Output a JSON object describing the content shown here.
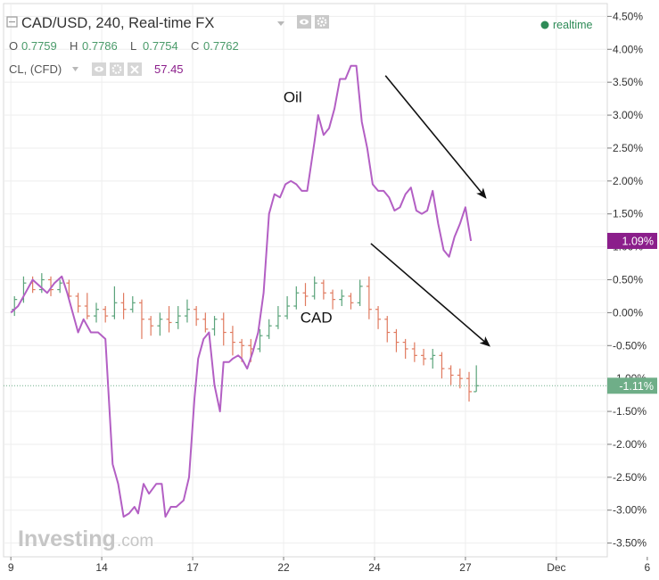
{
  "header": {
    "collapse_icon": "square-minus-icon",
    "symbol_title": "CAD/USD, 240, Real-time FX",
    "dropdown_icon": "triangle-down-icon",
    "eye_icon": "eye-icon",
    "settings_icon": "gear-icon",
    "ohlc": [
      {
        "label": "O",
        "value": "0.7759"
      },
      {
        "label": "H",
        "value": "0.7786"
      },
      {
        "label": "L",
        "value": "0.7754"
      },
      {
        "label": "C",
        "value": "0.7762"
      }
    ],
    "compare_title": "CL, (CFD)",
    "compare_value": "57.45",
    "close_icon": "close-icon",
    "realtime_label": "realtime",
    "realtime_dot_color": "#2e8b57"
  },
  "watermark": {
    "brand": "Investing",
    "suffix": ".com"
  },
  "colors": {
    "oil_line": "#b35fc4",
    "candle_up": "#5aa37a",
    "candle_down": "#e07a5f",
    "oil_badge": "#8b1e8b",
    "cad_badge": "#6fae88",
    "grid": "#eeeeee",
    "dotted_line": "#6fae88"
  },
  "chart_data": {
    "type": "line",
    "title": "CAD/USD, 240, Real-time FX",
    "y_axis": {
      "unit": "%",
      "ylim": [
        -3.6,
        4.6
      ],
      "tick_labels": [
        "4.50%",
        "4.00%",
        "3.50%",
        "3.00%",
        "2.50%",
        "2.00%",
        "1.50%",
        "1.00%",
        "0.50%",
        "0.00%",
        "-0.50%",
        "-1.00%",
        "-1.50%",
        "-2.00%",
        "-2.50%",
        "-3.00%",
        "-3.50%"
      ],
      "tick_values": [
        4.5,
        4.0,
        3.5,
        3.0,
        2.5,
        2.0,
        1.5,
        1.0,
        0.5,
        0.0,
        -0.5,
        -1.0,
        -1.5,
        -2.0,
        -2.5,
        -3.0,
        -3.5
      ]
    },
    "x_axis": {
      "xlim": [
        8.6,
        41.8
      ],
      "tick_labels": [
        "9",
        "14",
        "17",
        "22",
        "24",
        "27",
        "Dec",
        "6"
      ],
      "tick_values": [
        9,
        14,
        19,
        24,
        29,
        34,
        39,
        44
      ]
    },
    "grid": true,
    "last_value_badges": [
      {
        "series": "Oil",
        "label": "1.09%",
        "value": 1.09
      },
      {
        "series": "CAD",
        "label": "-1.11%",
        "value": -1.11
      }
    ],
    "annotations": [
      {
        "text": "Oil",
        "x": 24.5,
        "y": 3.2
      },
      {
        "text": "CAD",
        "x": 25.8,
        "y": -0.15
      }
    ],
    "arrows": [
      {
        "from": [
          29.6,
          3.6
        ],
        "to": [
          35.1,
          1.75
        ]
      },
      {
        "from": [
          28.8,
          1.05
        ],
        "to": [
          35.3,
          -0.5
        ]
      }
    ],
    "series": [
      {
        "name": "Oil",
        "kind": "line",
        "points": [
          [
            9.0,
            0.0
          ],
          [
            9.4,
            0.1
          ],
          [
            9.8,
            0.3
          ],
          [
            10.2,
            0.5
          ],
          [
            10.6,
            0.4
          ],
          [
            11.0,
            0.3
          ],
          [
            11.4,
            0.45
          ],
          [
            11.8,
            0.55
          ],
          [
            12.1,
            0.3
          ],
          [
            12.4,
            0.0
          ],
          [
            12.7,
            -0.3
          ],
          [
            13.0,
            -0.1
          ],
          [
            13.4,
            -0.3
          ],
          [
            13.8,
            -0.3
          ],
          [
            14.2,
            -0.4
          ],
          [
            14.6,
            -2.3
          ],
          [
            14.9,
            -2.6
          ],
          [
            15.2,
            -3.1
          ],
          [
            15.5,
            -3.05
          ],
          [
            15.8,
            -2.95
          ],
          [
            16.0,
            -3.05
          ],
          [
            16.3,
            -2.6
          ],
          [
            16.6,
            -2.75
          ],
          [
            17.0,
            -2.6
          ],
          [
            17.3,
            -2.6
          ],
          [
            17.5,
            -3.1
          ],
          [
            17.8,
            -2.95
          ],
          [
            18.1,
            -2.95
          ],
          [
            18.5,
            -2.85
          ],
          [
            18.8,
            -2.5
          ],
          [
            19.1,
            -1.3
          ],
          [
            19.3,
            -0.7
          ],
          [
            19.6,
            -0.4
          ],
          [
            19.9,
            -0.3
          ],
          [
            20.2,
            -1.1
          ],
          [
            20.5,
            -1.5
          ],
          [
            20.7,
            -0.75
          ],
          [
            21.0,
            -0.75
          ],
          [
            21.2,
            -0.7
          ],
          [
            21.5,
            -0.65
          ],
          [
            21.7,
            -0.7
          ],
          [
            22.0,
            -0.85
          ],
          [
            22.3,
            -0.6
          ],
          [
            22.6,
            -0.3
          ],
          [
            22.9,
            0.3
          ],
          [
            23.2,
            1.5
          ],
          [
            23.5,
            1.8
          ],
          [
            23.8,
            1.75
          ],
          [
            24.1,
            1.95
          ],
          [
            24.4,
            2.0
          ],
          [
            24.7,
            1.95
          ],
          [
            25.0,
            1.85
          ],
          [
            25.3,
            1.85
          ],
          [
            25.7,
            2.6
          ],
          [
            25.9,
            3.0
          ],
          [
            26.2,
            2.7
          ],
          [
            26.5,
            2.8
          ],
          [
            26.8,
            3.1
          ],
          [
            27.1,
            3.55
          ],
          [
            27.4,
            3.55
          ],
          [
            27.7,
            3.75
          ],
          [
            28.0,
            3.75
          ],
          [
            28.3,
            2.9
          ],
          [
            28.6,
            2.5
          ],
          [
            28.9,
            1.95
          ],
          [
            29.2,
            1.85
          ],
          [
            29.5,
            1.85
          ],
          [
            29.8,
            1.75
          ],
          [
            30.1,
            1.55
          ],
          [
            30.4,
            1.6
          ],
          [
            30.7,
            1.8
          ],
          [
            31.0,
            1.9
          ],
          [
            31.3,
            1.55
          ],
          [
            31.6,
            1.5
          ],
          [
            31.9,
            1.55
          ],
          [
            32.2,
            1.85
          ],
          [
            32.5,
            1.35
          ],
          [
            32.8,
            0.95
          ],
          [
            33.1,
            0.85
          ],
          [
            33.4,
            1.15
          ],
          [
            33.7,
            1.35
          ],
          [
            34.0,
            1.6
          ],
          [
            34.3,
            1.09
          ]
        ]
      },
      {
        "name": "CAD",
        "kind": "candlestick",
        "candles": [
          [
            9.2,
            0.05,
            0.2,
            0.25,
            -0.05
          ],
          [
            9.7,
            0.2,
            0.45,
            0.55,
            0.15
          ],
          [
            10.2,
            0.45,
            0.35,
            0.55,
            0.3
          ],
          [
            10.7,
            0.35,
            0.5,
            0.6,
            0.3
          ],
          [
            11.2,
            0.5,
            0.35,
            0.55,
            0.25
          ],
          [
            11.7,
            0.35,
            0.45,
            0.5,
            0.3
          ],
          [
            12.2,
            0.45,
            0.25,
            0.5,
            0.2
          ],
          [
            12.7,
            0.25,
            0.1,
            0.3,
            0.0
          ],
          [
            13.2,
            0.1,
            -0.05,
            0.3,
            -0.1
          ],
          [
            13.7,
            -0.05,
            0.05,
            0.15,
            -0.15
          ],
          [
            14.2,
            0.05,
            -0.05,
            0.1,
            -0.15
          ],
          [
            14.7,
            -0.05,
            0.15,
            0.4,
            -0.1
          ],
          [
            15.2,
            0.15,
            0.05,
            0.3,
            -0.1
          ],
          [
            15.7,
            0.05,
            0.15,
            0.25,
            0.0
          ],
          [
            16.2,
            0.15,
            -0.1,
            0.2,
            -0.4
          ],
          [
            16.7,
            -0.1,
            -0.2,
            -0.05,
            -0.35
          ],
          [
            17.2,
            -0.2,
            -0.1,
            0.0,
            -0.35
          ],
          [
            17.7,
            -0.1,
            -0.15,
            0.1,
            -0.3
          ],
          [
            18.2,
            -0.15,
            -0.05,
            0.1,
            -0.25
          ],
          [
            18.7,
            -0.05,
            0.05,
            0.2,
            -0.15
          ],
          [
            19.2,
            0.05,
            -0.1,
            0.1,
            -0.2
          ],
          [
            19.7,
            -0.1,
            -0.25,
            0.0,
            -0.3
          ],
          [
            20.2,
            -0.25,
            -0.1,
            -0.05,
            -0.35
          ],
          [
            20.7,
            -0.1,
            -0.3,
            0.0,
            -0.5
          ],
          [
            21.2,
            -0.3,
            -0.45,
            -0.2,
            -0.65
          ],
          [
            21.7,
            -0.45,
            -0.5,
            -0.4,
            -0.75
          ],
          [
            22.2,
            -0.5,
            -0.55,
            -0.4,
            -0.75
          ],
          [
            22.7,
            -0.55,
            -0.35,
            -0.25,
            -0.6
          ],
          [
            23.2,
            -0.35,
            -0.2,
            -0.1,
            -0.4
          ],
          [
            23.7,
            -0.2,
            -0.05,
            0.1,
            -0.25
          ],
          [
            24.2,
            -0.05,
            0.1,
            0.25,
            -0.1
          ],
          [
            24.7,
            0.1,
            0.3,
            0.4,
            0.05
          ],
          [
            25.2,
            0.3,
            0.25,
            0.45,
            0.1
          ],
          [
            25.7,
            0.25,
            0.45,
            0.55,
            0.2
          ],
          [
            26.2,
            0.45,
            0.3,
            0.5,
            0.2
          ],
          [
            26.7,
            0.3,
            0.2,
            0.35,
            0.05
          ],
          [
            27.2,
            0.2,
            0.25,
            0.35,
            0.1
          ],
          [
            27.7,
            0.25,
            0.15,
            0.3,
            0.05
          ],
          [
            28.2,
            0.15,
            0.4,
            0.5,
            0.1
          ],
          [
            28.7,
            0.4,
            0.05,
            0.55,
            -0.1
          ],
          [
            29.2,
            0.05,
            -0.1,
            0.1,
            -0.25
          ],
          [
            29.7,
            -0.1,
            -0.3,
            -0.05,
            -0.45
          ],
          [
            30.2,
            -0.3,
            -0.45,
            -0.25,
            -0.6
          ],
          [
            30.7,
            -0.45,
            -0.55,
            -0.4,
            -0.7
          ],
          [
            31.2,
            -0.55,
            -0.65,
            -0.45,
            -0.75
          ],
          [
            31.7,
            -0.65,
            -0.7,
            -0.55,
            -0.8
          ],
          [
            32.2,
            -0.7,
            -0.65,
            -0.55,
            -0.85
          ],
          [
            32.7,
            -0.65,
            -0.85,
            -0.6,
            -1.0
          ],
          [
            33.2,
            -0.85,
            -0.95,
            -0.8,
            -1.1
          ],
          [
            33.7,
            -0.95,
            -1.0,
            -0.85,
            -1.15
          ],
          [
            34.2,
            -1.0,
            -1.2,
            -0.9,
            -1.35
          ],
          [
            34.6,
            -1.2,
            -1.11,
            -0.8,
            -1.2
          ]
        ]
      }
    ]
  }
}
